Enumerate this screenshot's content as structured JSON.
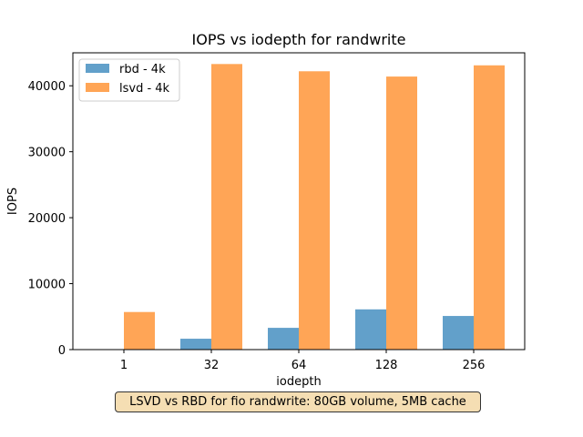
{
  "chart_data": {
    "type": "bar",
    "title": "IOPS vs iodepth for randwrite",
    "xlabel": "iodepth",
    "ylabel": "IOPS",
    "categories": [
      "1",
      "32",
      "64",
      "128",
      "256"
    ],
    "ylim": [
      0,
      45000
    ],
    "yticks": [
      0,
      10000,
      20000,
      30000,
      40000
    ],
    "series": [
      {
        "name": "rbd - 4k",
        "color": "#1f77b4",
        "values": [
          0,
          1650,
          3300,
          6100,
          5100
        ]
      },
      {
        "name": "lsvd - 4k",
        "color": "#ff7f0e",
        "values": [
          5700,
          43300,
          42200,
          41400,
          43100
        ]
      }
    ],
    "legend_position": "top-left",
    "grid": false,
    "annotation": "LSVD vs RBD for fio randwrite: 80GB volume, 5MB cache"
  }
}
